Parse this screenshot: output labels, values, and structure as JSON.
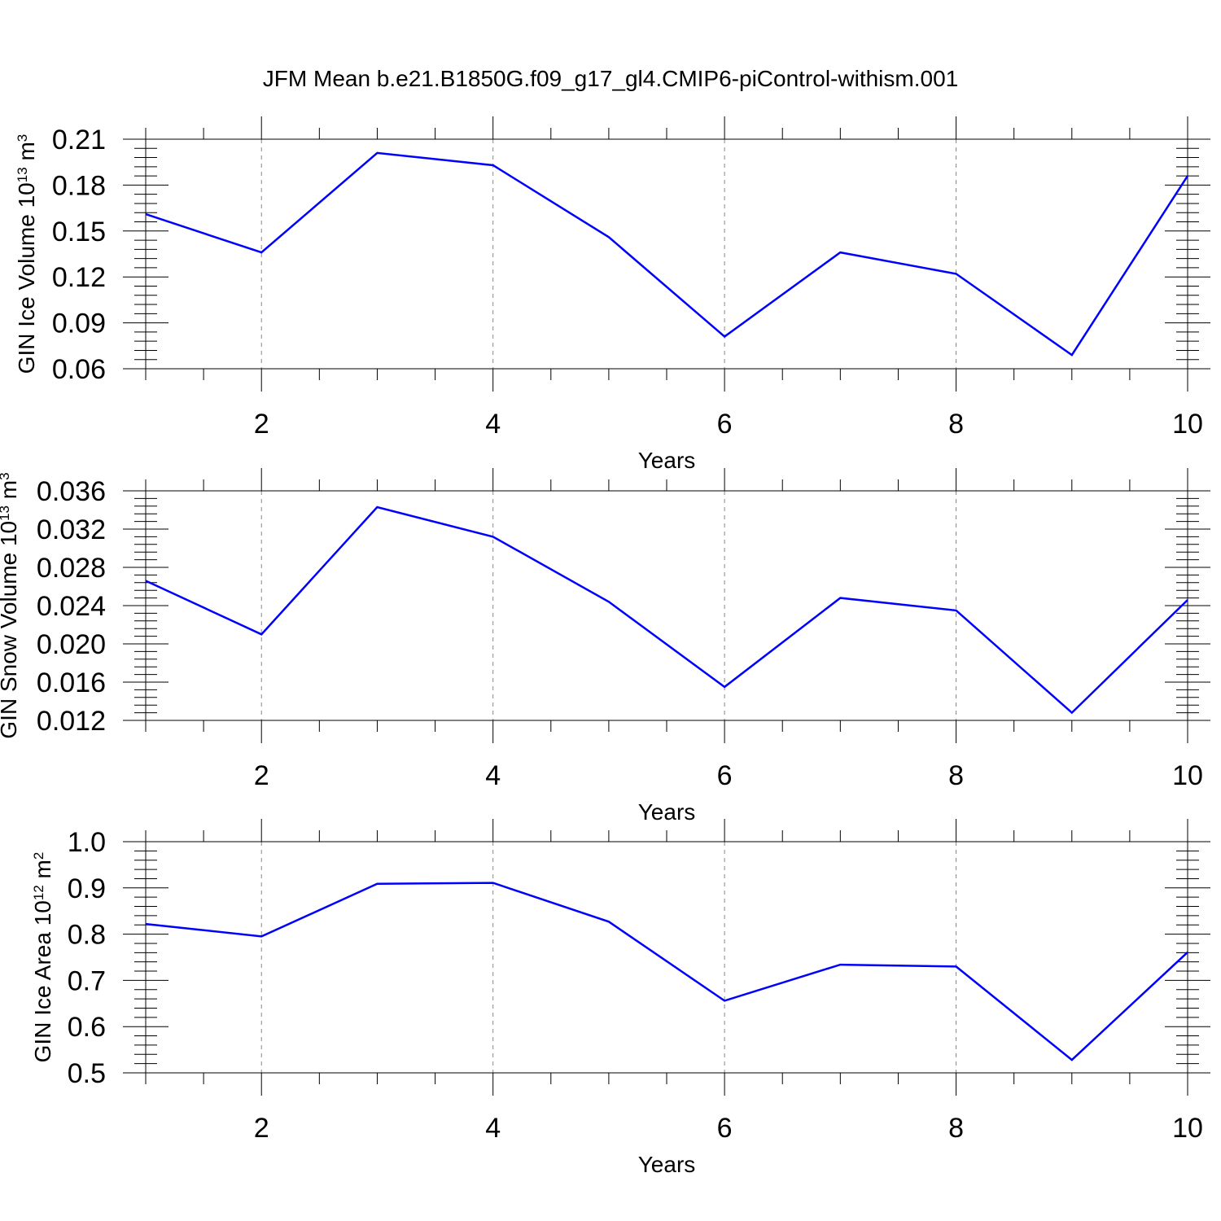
{
  "figure": {
    "title": "JFM Mean b.e21.B1850G.f09_g17_gl4.CMIP6-piControl-withism.001"
  },
  "style": {
    "line_color": "#0000ff",
    "axis_color": "#000000",
    "grid_color": "#888888"
  },
  "chart_data": [
    {
      "type": "line",
      "xlabel": "Years",
      "ylabel": {
        "text": "GIN Ice Volume 10",
        "sup": "13",
        "unit": " m",
        "unit_sup": "3"
      },
      "xlim": [
        1,
        10
      ],
      "ylim": [
        0.06,
        0.21
      ],
      "grid": "vertical dashed",
      "xticks": [
        2,
        4,
        6,
        8,
        10
      ],
      "xtick_labels": [
        "2",
        "4",
        "6",
        "8",
        "10"
      ],
      "yticks": [
        0.06,
        0.09,
        0.12,
        0.15,
        0.18,
        0.21
      ],
      "ytick_labels": [
        "0.06",
        "0.09",
        "0.12",
        "0.15",
        "0.18",
        "0.21"
      ],
      "x": [
        1,
        2,
        3,
        4,
        5,
        6,
        7,
        8,
        9,
        10
      ],
      "series": [
        {
          "values": [
            0.161,
            0.136,
            0.201,
            0.193,
            0.146,
            0.081,
            0.136,
            0.122,
            0.069,
            0.186
          ]
        }
      ]
    },
    {
      "type": "line",
      "xlabel": "Years",
      "ylabel": {
        "text": "GIN Snow Volume 10",
        "sup": "13",
        "unit": " m",
        "unit_sup": "3"
      },
      "xlim": [
        1,
        10
      ],
      "ylim": [
        0.012,
        0.036
      ],
      "grid": "vertical dashed",
      "xticks": [
        2,
        4,
        6,
        8,
        10
      ],
      "xtick_labels": [
        "2",
        "4",
        "6",
        "8",
        "10"
      ],
      "yticks": [
        0.012,
        0.016,
        0.02,
        0.024,
        0.028,
        0.032,
        0.036
      ],
      "ytick_labels": [
        "0.012",
        "0.016",
        "0.020",
        "0.024",
        "0.028",
        "0.032",
        "0.036"
      ],
      "x": [
        1,
        2,
        3,
        4,
        5,
        6,
        7,
        8,
        9,
        10
      ],
      "series": [
        {
          "values": [
            0.0266,
            0.021,
            0.0343,
            0.0312,
            0.0244,
            0.0155,
            0.0248,
            0.0235,
            0.0128,
            0.0246
          ]
        }
      ]
    },
    {
      "type": "line",
      "xlabel": "Years",
      "ylabel": {
        "text": "GIN Ice Area 10",
        "sup": "12",
        "unit": " m",
        "unit_sup": "2"
      },
      "xlim": [
        1,
        10
      ],
      "ylim": [
        0.5,
        1.0
      ],
      "grid": "vertical dashed",
      "xticks": [
        2,
        4,
        6,
        8,
        10
      ],
      "xtick_labels": [
        "2",
        "4",
        "6",
        "8",
        "10"
      ],
      "yticks": [
        0.5,
        0.6,
        0.7,
        0.8,
        0.9,
        1.0
      ],
      "ytick_labels": [
        "0.5",
        "0.6",
        "0.7",
        "0.8",
        "0.9",
        "1.0"
      ],
      "x": [
        1,
        2,
        3,
        4,
        5,
        6,
        7,
        8,
        9,
        10
      ],
      "series": [
        {
          "values": [
            0.822,
            0.795,
            0.909,
            0.911,
            0.827,
            0.656,
            0.734,
            0.73,
            0.528,
            0.761
          ]
        }
      ]
    }
  ]
}
